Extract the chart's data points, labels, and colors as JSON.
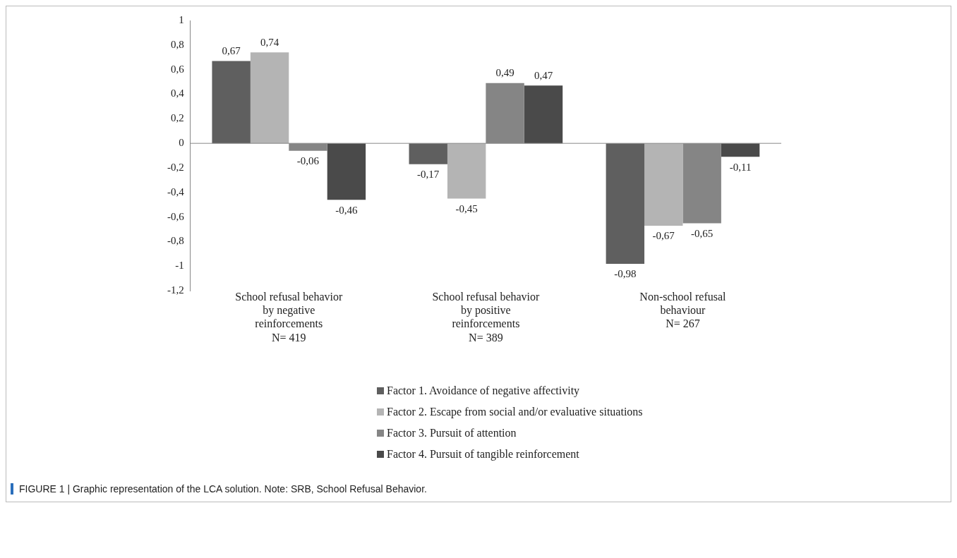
{
  "chart_data": {
    "type": "bar",
    "categories": [
      "School refusal behavior\nby negative\nreinforcements\nN= 419",
      "School refusal behavior\nby positive\nreinforcements\nN= 389",
      "Non-school refusal\nbehaviour\nN= 267"
    ],
    "series": [
      {
        "name": "Factor 1. Avoidance of negative affectivity",
        "color": "#5f5f5f",
        "values": [
          0.67,
          -0.17,
          -0.98
        ],
        "value_labels": [
          "0,67",
          "-0,17",
          "-0,98"
        ]
      },
      {
        "name": "Factor 2. Escape from social and/or evaluative situations",
        "color": "#b4b4b4",
        "values": [
          0.74,
          -0.45,
          -0.67
        ],
        "value_labels": [
          "0,74",
          "-0,45",
          "-0,67"
        ]
      },
      {
        "name": "Factor 3. Pursuit of attention",
        "color": "#858585",
        "values": [
          -0.06,
          0.49,
          -0.65
        ],
        "value_labels": [
          "-0,06",
          "0,49",
          "-0,65"
        ]
      },
      {
        "name": "Factor 4. Pursuit of tangible reinforcement",
        "color": "#4a4a4a",
        "values": [
          -0.46,
          0.47,
          -0.11
        ],
        "value_labels": [
          "-0,46",
          "0,47",
          "-0,11"
        ]
      }
    ],
    "ylim": [
      -1.2,
      1
    ],
    "yticks": [
      {
        "value": 1,
        "label": "1"
      },
      {
        "value": 0.8,
        "label": "0,8"
      },
      {
        "value": 0.6,
        "label": "0,6"
      },
      {
        "value": 0.4,
        "label": "0,4"
      },
      {
        "value": 0.2,
        "label": "0,2"
      },
      {
        "value": 0,
        "label": "0"
      },
      {
        "value": -0.2,
        "label": "-0,2"
      },
      {
        "value": -0.4,
        "label": "-0,4"
      },
      {
        "value": -0.6,
        "label": "-0,6"
      },
      {
        "value": -0.8,
        "label": "-0,8"
      },
      {
        "value": -1,
        "label": "-1"
      },
      {
        "value": -1.2,
        "label": "-1,2"
      }
    ],
    "grid": false,
    "ref_lines": [
      {
        "axis": "y",
        "value": 0,
        "color": "#888888"
      }
    ],
    "legend": "bottom",
    "annotations": [
      "FIGURE 1 | Graphic representation of the LCA solution. Note: SRB, School Refusal Behavior."
    ]
  }
}
